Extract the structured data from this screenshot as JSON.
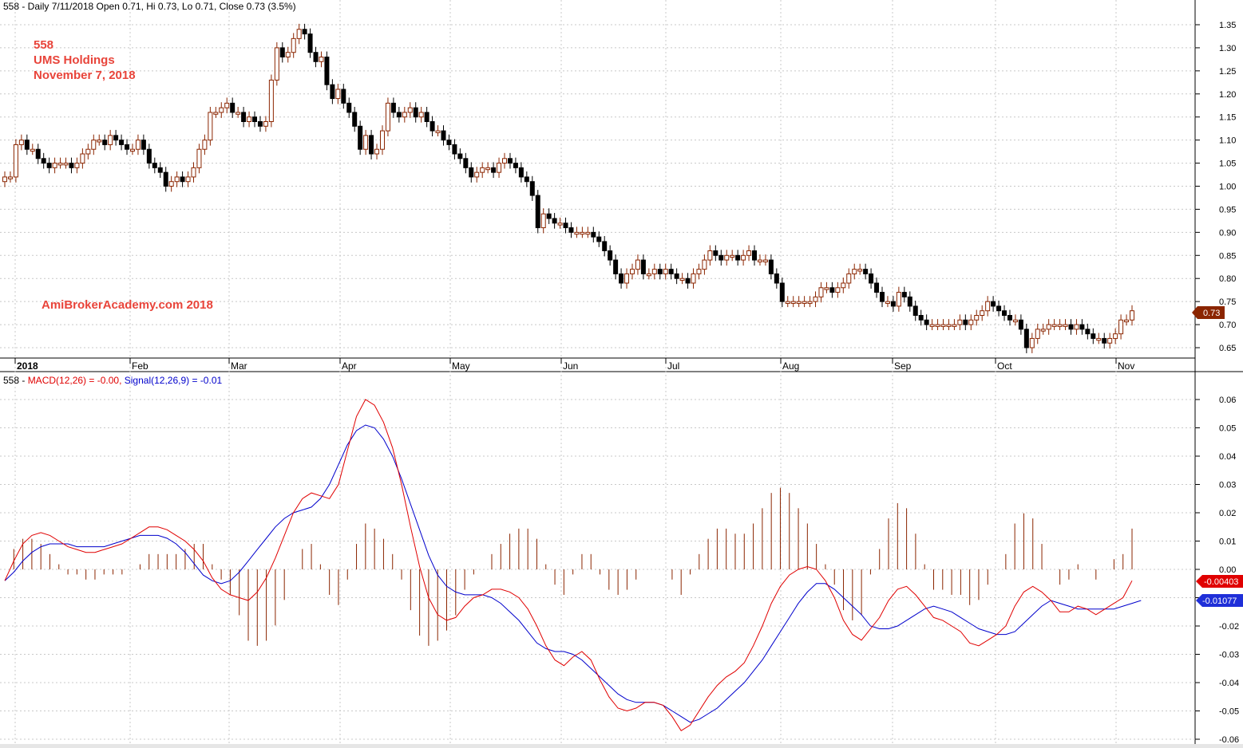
{
  "header": {
    "price_title": "558 - Daily 7/11/2018 Open 0.71, Hi 0.73, Lo 0.71, Close 0.73 (3.5%)",
    "macd_prefix": "558 - ",
    "macd_label": "MACD(12,26) = -0.00, ",
    "signal_label": "Signal(12,26,9) = -0.01"
  },
  "annotations": {
    "ticker": "558",
    "company": "UMS Holdings",
    "date": "November 7, 2018",
    "watermark": "AmiBrokerAcademy.com  2018"
  },
  "price_axis": {
    "ticks": [
      "1.35",
      "1.30",
      "1.25",
      "1.20",
      "1.15",
      "1.10",
      "1.05",
      "1.00",
      "0.95",
      "0.90",
      "0.85",
      "0.80",
      "0.75",
      "0.70",
      "0.65"
    ],
    "last_price_label": "0.73"
  },
  "macd_axis": {
    "ticks": [
      "0.06",
      "0.05",
      "0.04",
      "0.03",
      "0.02",
      "0.01",
      "0.00",
      "-0.01",
      "-0.02",
      "-0.03",
      "-0.04",
      "-0.05",
      "-0.06"
    ],
    "macd_value_label": "-0.00403",
    "signal_value_label": "-0.01077"
  },
  "x_axis": {
    "months": [
      "2018",
      "Feb",
      "Mar",
      "Apr",
      "May",
      "Jun",
      "Jul",
      "Aug",
      "Sep",
      "Oct",
      "Nov"
    ]
  },
  "colors": {
    "up_candle": "#8b2500",
    "down_candle": "#000000",
    "macd_line": "#e00000",
    "signal_line": "#0000cc",
    "histogram": "#8b2500",
    "annotation_text": "#e8443a",
    "grid": "#c8c8c8"
  },
  "chart_data": [
    {
      "type": "candlestick",
      "title": "558 - Daily 7/11/2018 Open 0.71, Hi 0.73, Lo 0.71, Close 0.73 (3.5%)",
      "ylim": [
        0.62,
        1.38
      ],
      "grid": true,
      "closes": [
        1.02,
        1.02,
        1.09,
        1.1,
        1.08,
        1.08,
        1.06,
        1.05,
        1.04,
        1.05,
        1.05,
        1.05,
        1.04,
        1.05,
        1.07,
        1.08,
        1.1,
        1.1,
        1.09,
        1.11,
        1.1,
        1.09,
        1.08,
        1.08,
        1.1,
        1.08,
        1.05,
        1.04,
        1.03,
        1.0,
        1.01,
        1.02,
        1.01,
        1.02,
        1.04,
        1.08,
        1.1,
        1.16,
        1.16,
        1.17,
        1.18,
        1.16,
        1.16,
        1.14,
        1.15,
        1.14,
        1.13,
        1.14,
        1.23,
        1.3,
        1.28,
        1.29,
        1.32,
        1.34,
        1.33,
        1.29,
        1.27,
        1.28,
        1.22,
        1.19,
        1.21,
        1.18,
        1.16,
        1.13,
        1.08,
        1.11,
        1.07,
        1.08,
        1.12,
        1.18,
        1.16,
        1.15,
        1.16,
        1.17,
        1.15,
        1.16,
        1.14,
        1.12,
        1.12,
        1.1,
        1.09,
        1.07,
        1.06,
        1.04,
        1.02,
        1.03,
        1.04,
        1.04,
        1.03,
        1.05,
        1.06,
        1.05,
        1.04,
        1.02,
        1.01,
        0.98,
        0.91,
        0.94,
        0.93,
        0.92,
        0.92,
        0.91,
        0.9,
        0.9,
        0.9,
        0.9,
        0.89,
        0.88,
        0.86,
        0.84,
        0.81,
        0.79,
        0.81,
        0.82,
        0.84,
        0.81,
        0.81,
        0.82,
        0.81,
        0.82,
        0.81,
        0.8,
        0.8,
        0.79,
        0.81,
        0.82,
        0.84,
        0.86,
        0.85,
        0.84,
        0.85,
        0.85,
        0.84,
        0.85,
        0.86,
        0.84,
        0.84,
        0.84,
        0.81,
        0.79,
        0.75,
        0.75,
        0.75,
        0.75,
        0.75,
        0.75,
        0.76,
        0.78,
        0.78,
        0.77,
        0.78,
        0.79,
        0.81,
        0.82,
        0.82,
        0.81,
        0.79,
        0.77,
        0.75,
        0.75,
        0.74,
        0.77,
        0.76,
        0.74,
        0.72,
        0.71,
        0.7,
        0.7,
        0.7,
        0.7,
        0.7,
        0.7,
        0.71,
        0.7,
        0.71,
        0.72,
        0.73,
        0.75,
        0.74,
        0.73,
        0.72,
        0.71,
        0.71,
        0.69,
        0.65,
        0.67,
        0.69,
        0.69,
        0.7,
        0.7,
        0.7,
        0.7,
        0.69,
        0.7,
        0.69,
        0.68,
        0.67,
        0.67,
        0.66,
        0.67,
        0.68,
        0.71,
        0.71,
        0.73
      ]
    },
    {
      "type": "line",
      "title": "558 - MACD(12,26) = -0.00, Signal(12,26,9) = -0.01",
      "ylim": [
        -0.062,
        0.068
      ],
      "grid": true,
      "series": [
        {
          "name": "MACD(12,26)",
          "values": [
            -0.004,
            0.003,
            0.009,
            0.012,
            0.013,
            0.012,
            0.01,
            0.008,
            0.007,
            0.006,
            0.006,
            0.007,
            0.008,
            0.009,
            0.011,
            0.013,
            0.015,
            0.015,
            0.014,
            0.012,
            0.01,
            0.007,
            0.003,
            -0.003,
            -0.007,
            -0.009,
            -0.01,
            -0.011,
            -0.008,
            -0.003,
            0.004,
            0.012,
            0.02,
            0.025,
            0.027,
            0.026,
            0.025,
            0.03,
            0.042,
            0.054,
            0.06,
            0.058,
            0.052,
            0.043,
            0.03,
            0.015,
            0.001,
            -0.01,
            -0.016,
            -0.018,
            -0.017,
            -0.013,
            -0.01,
            -0.009,
            -0.007,
            -0.007,
            -0.008,
            -0.01,
            -0.014,
            -0.02,
            -0.027,
            -0.032,
            -0.034,
            -0.031,
            -0.029,
            -0.032,
            -0.039,
            -0.045,
            -0.049,
            -0.05,
            -0.049,
            -0.047,
            -0.047,
            -0.048,
            -0.052,
            -0.057,
            -0.055,
            -0.05,
            -0.045,
            -0.041,
            -0.038,
            -0.036,
            -0.033,
            -0.027,
            -0.02,
            -0.012,
            -0.006,
            -0.002,
            0.0,
            0.001,
            0.0,
            -0.004,
            -0.01,
            -0.018,
            -0.023,
            -0.025,
            -0.021,
            -0.017,
            -0.011,
            -0.007,
            -0.006,
            -0.009,
            -0.013,
            -0.017,
            -0.018,
            -0.02,
            -0.022,
            -0.026,
            -0.027,
            -0.025,
            -0.023,
            -0.02,
            -0.013,
            -0.008,
            -0.006,
            -0.008,
            -0.011,
            -0.015,
            -0.015,
            -0.013,
            -0.014,
            -0.016,
            -0.014,
            -0.012,
            -0.01,
            -0.004
          ]
        },
        {
          "name": "Signal(12,26,9)",
          "values": [
            -0.004,
            -0.001,
            0.003,
            0.006,
            0.008,
            0.009,
            0.009,
            0.009,
            0.008,
            0.008,
            0.008,
            0.008,
            0.009,
            0.01,
            0.011,
            0.012,
            0.012,
            0.012,
            0.011,
            0.009,
            0.006,
            0.002,
            -0.002,
            -0.004,
            -0.005,
            -0.004,
            -0.001,
            0.003,
            0.007,
            0.011,
            0.015,
            0.018,
            0.02,
            0.021,
            0.022,
            0.025,
            0.03,
            0.037,
            0.044,
            0.049,
            0.051,
            0.05,
            0.046,
            0.04,
            0.032,
            0.023,
            0.014,
            0.005,
            -0.002,
            -0.006,
            -0.008,
            -0.009,
            -0.009,
            -0.009,
            -0.01,
            -0.012,
            -0.015,
            -0.018,
            -0.022,
            -0.026,
            -0.028,
            -0.029,
            -0.029,
            -0.03,
            -0.032,
            -0.035,
            -0.038,
            -0.041,
            -0.044,
            -0.046,
            -0.047,
            -0.047,
            -0.047,
            -0.048,
            -0.05,
            -0.052,
            -0.054,
            -0.053,
            -0.051,
            -0.049,
            -0.046,
            -0.043,
            -0.04,
            -0.036,
            -0.032,
            -0.027,
            -0.022,
            -0.017,
            -0.012,
            -0.008,
            -0.005,
            -0.005,
            -0.007,
            -0.01,
            -0.013,
            -0.016,
            -0.02,
            -0.021,
            -0.021,
            -0.02,
            -0.018,
            -0.016,
            -0.014,
            -0.013,
            -0.014,
            -0.015,
            -0.017,
            -0.019,
            -0.021,
            -0.022,
            -0.023,
            -0.023,
            -0.022,
            -0.019,
            -0.016,
            -0.013,
            -0.011,
            -0.012,
            -0.013,
            -0.014,
            -0.014,
            -0.014,
            -0.014,
            -0.014,
            -0.013,
            -0.012,
            -0.011
          ]
        }
      ]
    }
  ]
}
